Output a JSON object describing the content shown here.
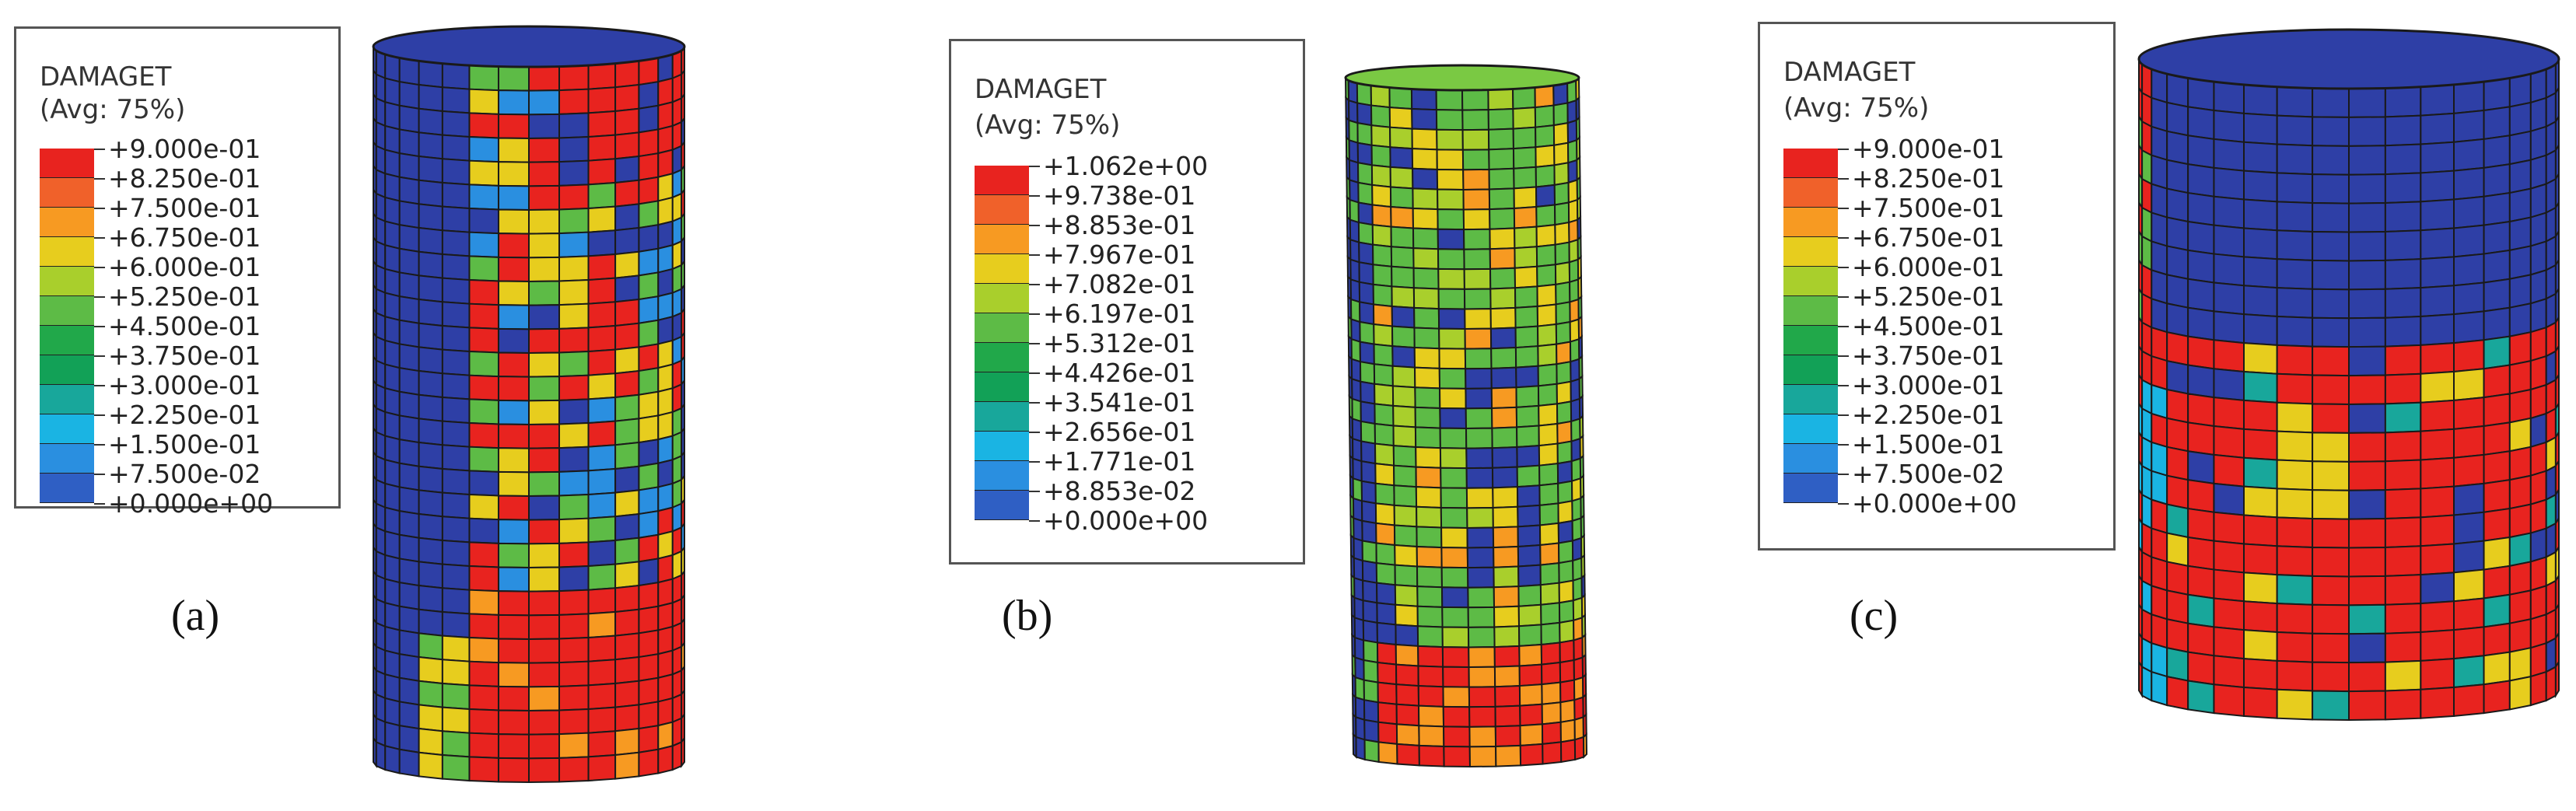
{
  "panels": [
    {
      "id": "a",
      "caption": "(a)",
      "legend_title": "DAMAGET",
      "legend_subtitle": "(Avg: 75%)",
      "legend_values": [
        "+9.000e-01",
        "+8.250e-01",
        "+7.500e-01",
        "+6.750e-01",
        "+6.000e-01",
        "+5.250e-01",
        "+4.500e-01",
        "+3.750e-01",
        "+3.000e-01",
        "+2.250e-01",
        "+1.500e-01",
        "+7.500e-02",
        "+0.000e+00"
      ]
    },
    {
      "id": "b",
      "caption": "(b)",
      "legend_title": "DAMAGET",
      "legend_subtitle": "(Avg: 75%)",
      "legend_values": [
        "+1.062e+00",
        "+9.738e-01",
        "+8.853e-01",
        "+7.967e-01",
        "+7.082e-01",
        "+6.197e-01",
        "+5.312e-01",
        "+4.426e-01",
        "+3.541e-01",
        "+2.656e-01",
        "+1.771e-01",
        "+8.853e-02",
        "+0.000e+00"
      ]
    },
    {
      "id": "c",
      "caption": "(c)",
      "legend_title": "DAMAGET",
      "legend_subtitle": "(Avg: 75%)",
      "legend_values": [
        "+9.000e-01",
        "+8.250e-01",
        "+7.500e-01",
        "+6.750e-01",
        "+6.000e-01",
        "+5.250e-01",
        "+4.500e-01",
        "+3.750e-01",
        "+3.000e-01",
        "+2.250e-01",
        "+1.500e-01",
        "+7.500e-02",
        "+0.000e+00"
      ]
    }
  ],
  "colormap": [
    "#e8231f",
    "#f0612a",
    "#f79a22",
    "#e7cd1e",
    "#a9cf2c",
    "#5dbb46",
    "#21a84a",
    "#12a157",
    "#18a79b",
    "#1ab4e3",
    "#2a8fe0",
    "#2f5fc4",
    "#2e3fa6"
  ],
  "mesh_color": "#1a1a1a"
}
